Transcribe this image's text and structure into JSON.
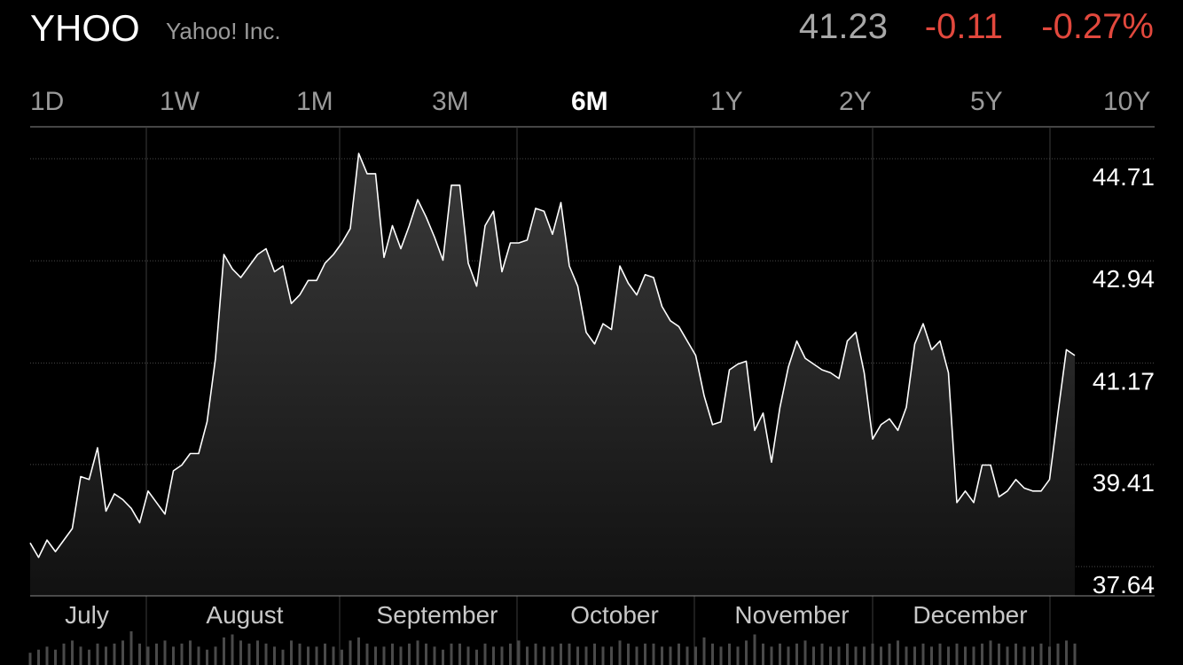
{
  "header": {
    "symbol": "YHOO",
    "company": "Yahoo! Inc.",
    "price": "41.23",
    "change": "-0.11",
    "change_pct": "-0.27%"
  },
  "ranges": [
    "1D",
    "1W",
    "1M",
    "3M",
    "6M",
    "1Y",
    "2Y",
    "5Y",
    "10Y"
  ],
  "active_range": "6M",
  "colors": {
    "negative": "#e2483d",
    "line": "#ffffff",
    "background": "#000000"
  },
  "chart_data": {
    "type": "area",
    "y_ticks": [
      "44.71",
      "42.94",
      "41.17",
      "39.41",
      "37.64"
    ],
    "ylim": [
      37.64,
      44.71
    ],
    "x_labels": [
      "July",
      "August",
      "September",
      "October",
      "November",
      "December"
    ],
    "values": [
      38.05,
      37.8,
      38.1,
      37.9,
      38.1,
      38.3,
      39.2,
      39.15,
      39.7,
      38.6,
      38.9,
      38.8,
      38.65,
      38.4,
      38.95,
      38.75,
      38.55,
      39.3,
      39.4,
      39.6,
      39.6,
      40.15,
      41.25,
      43.05,
      42.8,
      42.65,
      42.85,
      43.05,
      43.15,
      42.75,
      42.85,
      42.2,
      42.35,
      42.6,
      42.6,
      42.9,
      43.05,
      43.25,
      43.5,
      44.8,
      44.45,
      44.45,
      43.0,
      43.55,
      43.15,
      43.55,
      44.0,
      43.7,
      43.35,
      42.95,
      44.25,
      44.25,
      42.9,
      42.5,
      43.55,
      43.8,
      42.75,
      43.25,
      43.25,
      43.3,
      43.85,
      43.8,
      43.4,
      43.95,
      42.85,
      42.5,
      41.7,
      41.5,
      41.85,
      41.75,
      42.85,
      42.55,
      42.35,
      42.7,
      42.65,
      42.15,
      41.9,
      41.8,
      41.55,
      41.3,
      40.6,
      40.1,
      40.15,
      41.05,
      41.15,
      41.2,
      40.0,
      40.3,
      39.45,
      40.4,
      41.1,
      41.55,
      41.25,
      41.15,
      41.05,
      41.0,
      40.9,
      41.55,
      41.7,
      41.0,
      39.85,
      40.1,
      40.2,
      40.0,
      40.4,
      41.5,
      41.85,
      41.4,
      41.55,
      41.0,
      38.75,
      38.95,
      38.75,
      39.4,
      39.4,
      38.85,
      38.95,
      39.15,
      39.0,
      38.95,
      38.95,
      39.15,
      40.3,
      41.4,
      41.3
    ],
    "volume": [
      20,
      25,
      30,
      25,
      35,
      40,
      30,
      25,
      35,
      30,
      35,
      40,
      55,
      35,
      30,
      35,
      40,
      30,
      35,
      40,
      30,
      25,
      30,
      45,
      50,
      40,
      35,
      40,
      35,
      30,
      25,
      40,
      35,
      30,
      30,
      35,
      30,
      25,
      40,
      45,
      35,
      30,
      30,
      35,
      30,
      35,
      40,
      35,
      30,
      25,
      35,
      35,
      30,
      25,
      35,
      30,
      30,
      35,
      40,
      30,
      35,
      30,
      30,
      35,
      35,
      30,
      30,
      35,
      30,
      30,
      40,
      35,
      30,
      35,
      35,
      30,
      30,
      35,
      30,
      30,
      45,
      35,
      30,
      35,
      30,
      40,
      50,
      35,
      30,
      35,
      30,
      35,
      40,
      30,
      35,
      30,
      30,
      35,
      30,
      30,
      35,
      30,
      35,
      40,
      30,
      30,
      35,
      30,
      35,
      30,
      35,
      30,
      30,
      35,
      40,
      35,
      30,
      35,
      30,
      30,
      35,
      30,
      35,
      40,
      35
    ]
  }
}
